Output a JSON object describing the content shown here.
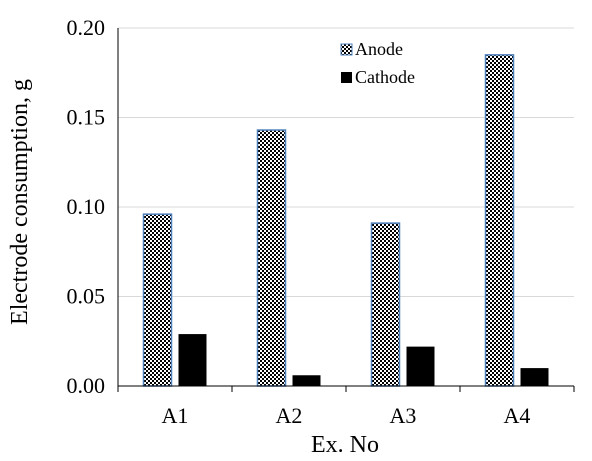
{
  "chart_data": {
    "type": "bar",
    "categories": [
      "A1",
      "A2",
      "A3",
      "A4"
    ],
    "series": [
      {
        "name": "Anode",
        "values": [
          0.096,
          0.143,
          0.091,
          0.185
        ]
      },
      {
        "name": "Cathode",
        "values": [
          0.029,
          0.006,
          0.022,
          0.01
        ]
      }
    ],
    "xlabel": "Ex. No",
    "ylabel": "Electrode consumption, g",
    "ylim": [
      0,
      0.2
    ],
    "yticks": [
      "0.00",
      "0.05",
      "0.10",
      "0.15",
      "0.20"
    ],
    "grid": true,
    "legend_position": "top-right",
    "colors": {
      "anode_border": "#4f81bd",
      "anode_pattern": "#000000",
      "cathode_fill": "#000000",
      "gridline": "#d9d9d9",
      "axis": "#000000"
    }
  }
}
